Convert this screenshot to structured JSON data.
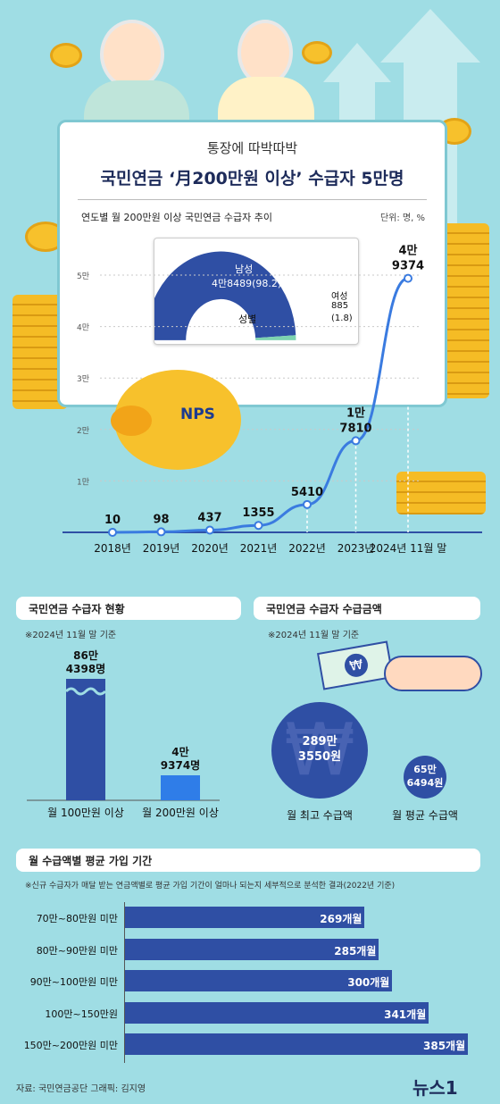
{
  "header": {
    "subtitle": "통장에 따박따박",
    "title": "국민연금 ‘月200만원 이상’ 수급자 5만명"
  },
  "trend": {
    "caption": "연도별 월 200만원 이상 국민연금 수급자 추이",
    "unit": "단위: 명, %",
    "logo": "NPS"
  },
  "gender": {
    "title": "성별",
    "male_label": "남성",
    "male_value": "4만8489(98.2)",
    "female_label": "여성",
    "female_value": "885",
    "female_pct": "(1.8)",
    "male_share": 98.2,
    "female_share": 1.8,
    "colors": {
      "male": "#2f4fa4",
      "female": "#7dd3b0"
    }
  },
  "chart_data": [
    {
      "type": "line",
      "categories": [
        "2018년",
        "2019년",
        "2020년",
        "2021년",
        "2022년",
        "2023년",
        "2024년 11월 말"
      ],
      "values": [
        10,
        98,
        437,
        1355,
        5410,
        17810,
        49374
      ],
      "data_labels": [
        "10",
        "98",
        "437",
        "1355",
        "5410",
        "1만\n7810",
        "4만\n9374"
      ],
      "y_ticks": [
        "1만",
        "2만",
        "3만",
        "4만",
        "5만"
      ],
      "ylim": [
        0,
        50000
      ],
      "color": "#3a7be0"
    },
    {
      "type": "bar",
      "title": "국민연금 수급자 현황",
      "note": "※2024년 11월 말 기준",
      "categories": [
        "월 100만원 이상",
        "월 200만원 이상"
      ],
      "values": [
        864398,
        49374
      ],
      "data_labels": [
        "86만\n4398명",
        "4만\n9374명"
      ],
      "colors": [
        "#2f4fa4",
        "#2f7de8"
      ]
    },
    {
      "type": "bar",
      "title": "월 수급액별 평균 가입 기간",
      "note": "※신규 수급자가 매달 받는 연금액별로 평균 가입 기간이 얼마나 되는지 세부적으로 분석한 결과(2022년 기준)",
      "categories": [
        "70만~80만원 미만",
        "80만~90만원 미만",
        "90만~100만원 미만",
        "100만~150만원",
        "150만~200만원 미만"
      ],
      "values": [
        269,
        285,
        300,
        341,
        385
      ],
      "value_suffix": "개월",
      "color": "#2f4fa4"
    }
  ],
  "amount": {
    "title": "국민연금 수급자 수급금액",
    "note": "※2024년 11월 말 기준",
    "max_value": "289만\n3550원",
    "max_label": "월 최고 수급액",
    "avg_value": "65만\n6494원",
    "avg_label": "월 평균 수급액"
  },
  "footer": {
    "source": "자료: 국민연금공단   그래픽: 김지영",
    "brand": "뉴스1"
  }
}
